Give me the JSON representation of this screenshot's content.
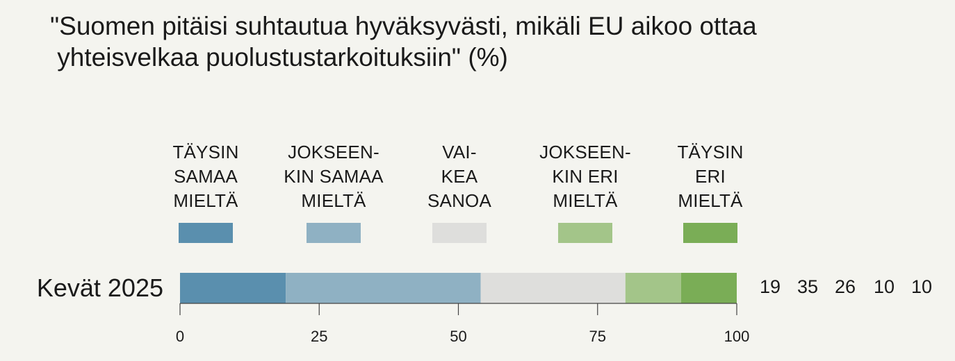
{
  "chart_data": {
    "type": "bar",
    "stacked": true,
    "orientation": "horizontal",
    "title": "\"Suomen pitäisi suhtautua hyväksyvästi, mikäli EU aikoo ottaa yhteisvelkaa puolustustarkoituksiin\" (%)",
    "title_lines": [
      "\"Suomen pitäisi suhtautua hyväksyvästi, mikäli EU aikoo ottaa",
      " yhteisvelkaa puolustustarkoituksiin\" (%)"
    ],
    "categories": [
      "Kevät 2025"
    ],
    "series": [
      {
        "name": "TÄYSIN SAMAA MIELTÄ",
        "legend_lines": [
          "TÄYSIN",
          "SAMAA",
          "MIELTÄ"
        ],
        "color": "#5a8fae",
        "values": [
          19
        ]
      },
      {
        "name": "JOKSEENKIN SAMAA MIELTÄ",
        "legend_lines": [
          "JOKSEEN-",
          "KIN SAMAA",
          "MIELTÄ"
        ],
        "color": "#8fb1c3",
        "values": [
          35
        ]
      },
      {
        "name": "VAIKEA SANOA",
        "legend_lines": [
          "VAI-",
          "KEA",
          "SANOA"
        ],
        "color": "#dededc",
        "values": [
          26
        ]
      },
      {
        "name": "JOKSEENKIN ERI MIELTÄ",
        "legend_lines": [
          "JOKSEEN-",
          "KIN ERI",
          "MIELTÄ"
        ],
        "color": "#a3c589",
        "values": [
          10
        ]
      },
      {
        "name": "TÄYSIN ERI MIELTÄ",
        "legend_lines": [
          "TÄYSIN",
          "ERI",
          "MIELTÄ"
        ],
        "color": "#7aad56",
        "values": [
          10
        ]
      }
    ],
    "xlim": [
      0,
      100
    ],
    "xticks": [
      0,
      25,
      50,
      75,
      100
    ],
    "value_labels": [
      "19",
      "35",
      "26",
      "10",
      "10"
    ],
    "grid": false,
    "legend_position": "top"
  }
}
